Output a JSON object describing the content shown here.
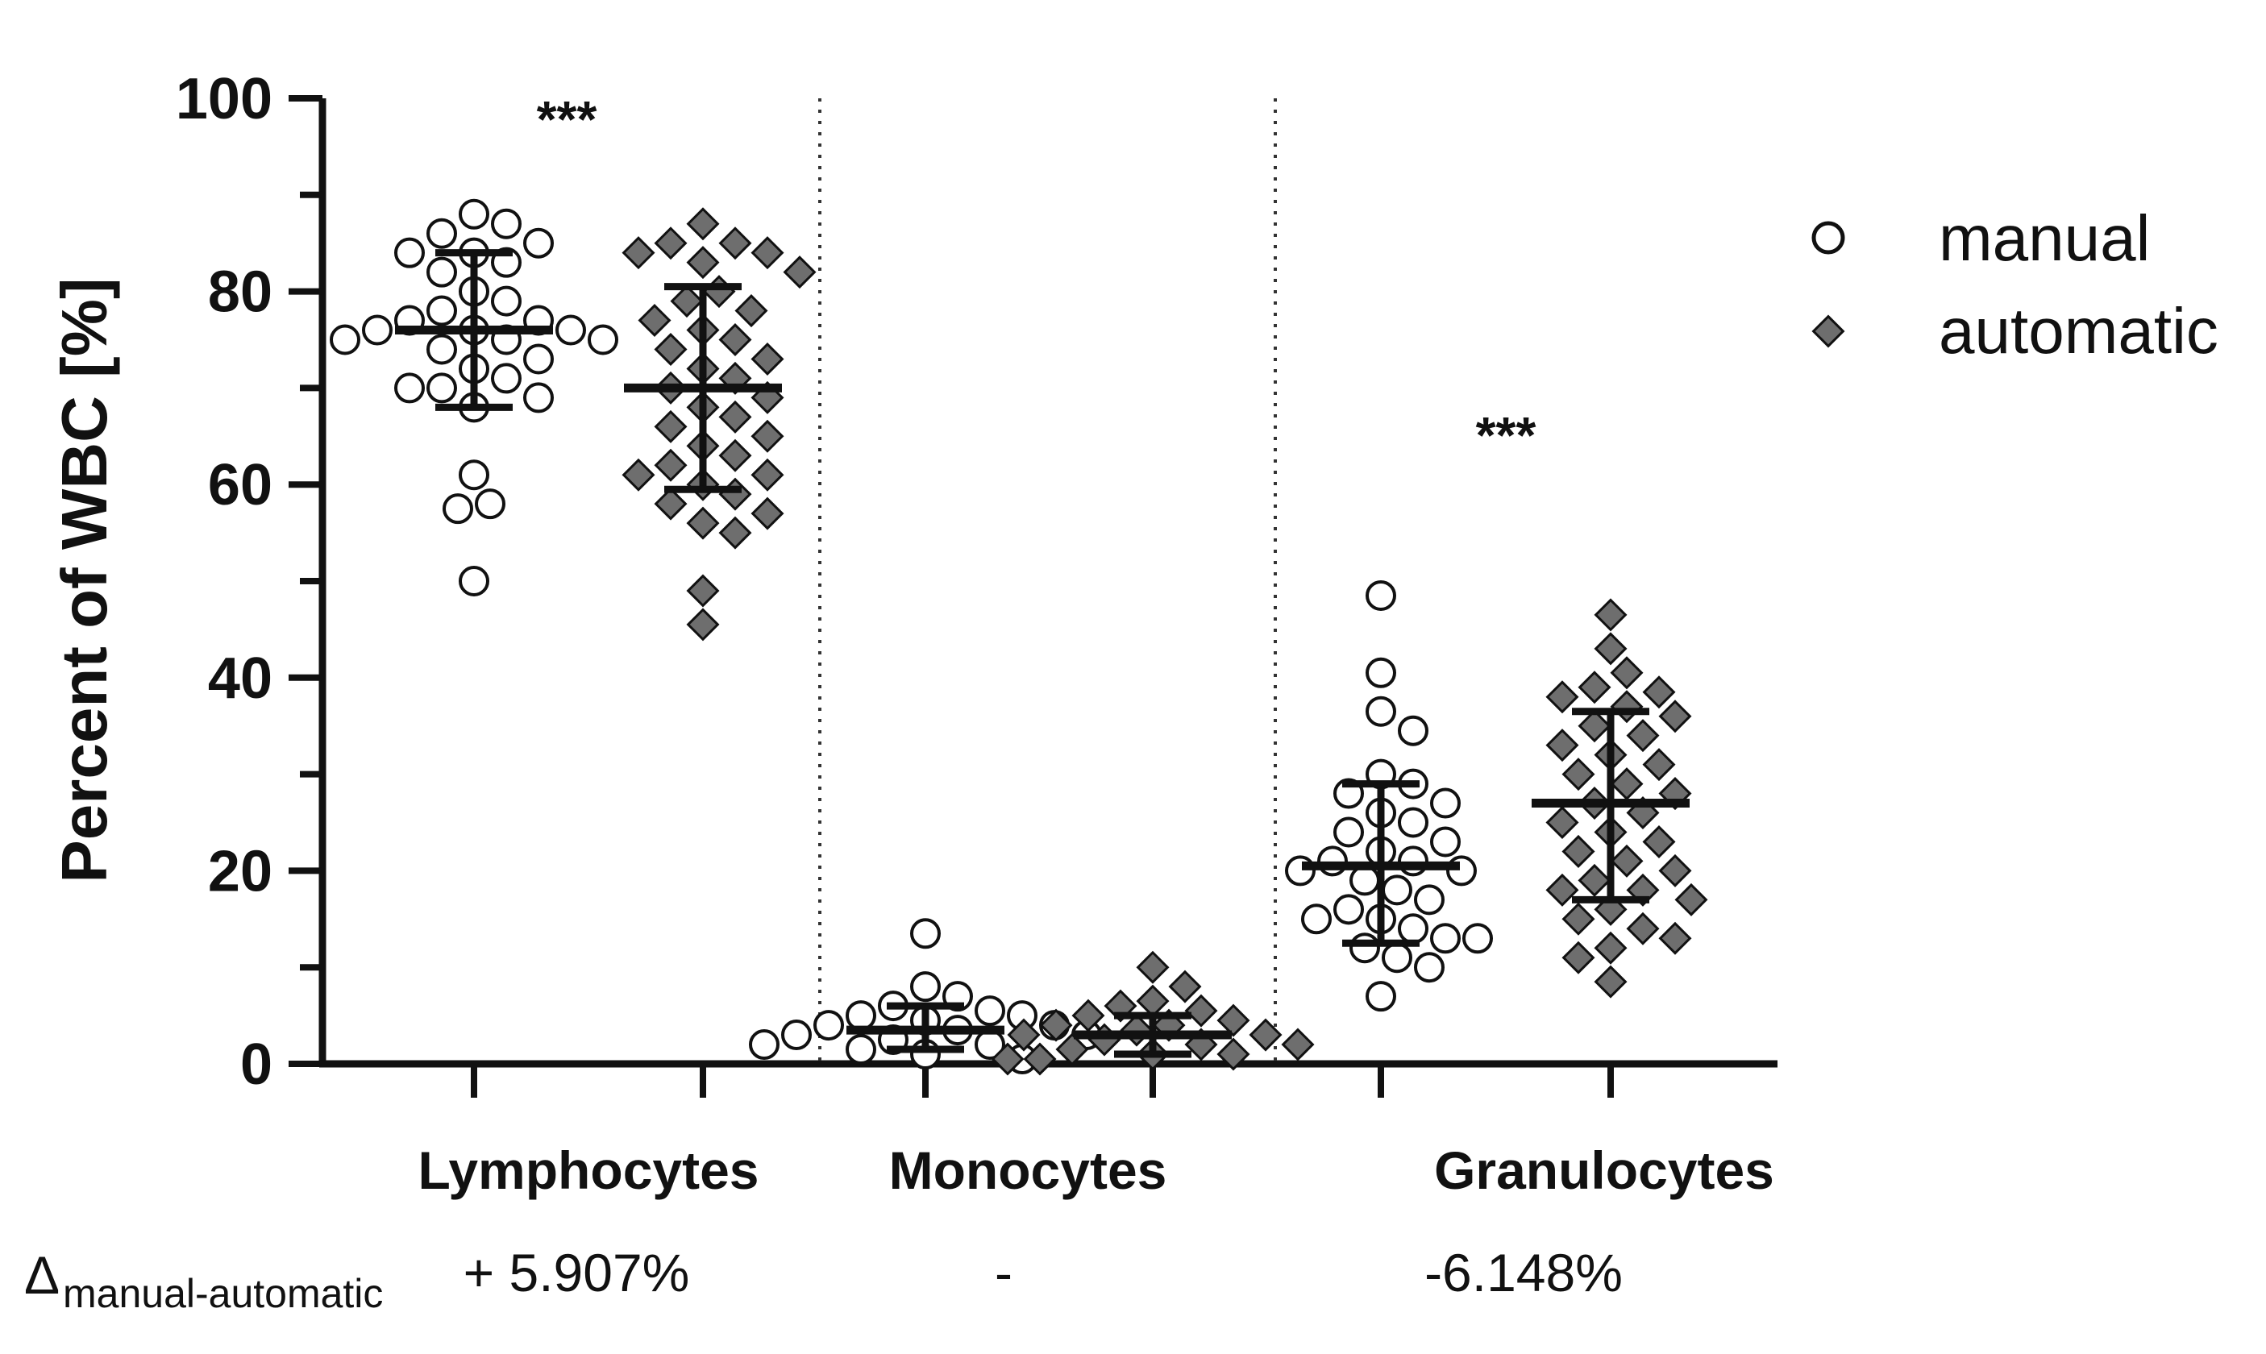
{
  "chart_data": {
    "type": "scatter",
    "ylabel": "Percent of WBC [%]",
    "ylim": [
      0,
      100
    ],
    "yticks": [
      0,
      20,
      40,
      60,
      80,
      100
    ],
    "categories": [
      "Lymphocytes",
      "Monocytes",
      "Granulocytes"
    ],
    "legend": {
      "placement": "top-right",
      "entries": [
        {
          "name": "manual",
          "marker": "circle",
          "fill": "#ffffff"
        },
        {
          "name": "automatic",
          "marker": "diamond",
          "fill": "#6e6e6e"
        }
      ]
    },
    "significance": [
      {
        "category": "Lymphocytes",
        "label": "***"
      },
      {
        "category": "Granulocytes",
        "label": "***"
      }
    ],
    "delta": {
      "symbol": "Δ",
      "subscript": "manual-automatic",
      "values": [
        "+ 5.907%",
        "-",
        "-6.148%"
      ]
    },
    "groups": [
      {
        "category": "Lymphocytes",
        "series": "manual",
        "mean": 76,
        "sd_low": 68,
        "sd_high": 84,
        "values": [
          88,
          87,
          86,
          85,
          84,
          84,
          83,
          82,
          80,
          79,
          78,
          77,
          77,
          76,
          76,
          76,
          75,
          75,
          75,
          74,
          73,
          72,
          71,
          70,
          70,
          69,
          68,
          61,
          58,
          57.5,
          50
        ]
      },
      {
        "category": "Lymphocytes",
        "series": "automatic",
        "mean": 70,
        "sd_low": 59.5,
        "sd_high": 80.5,
        "values": [
          87,
          85,
          85,
          84,
          84,
          83,
          82,
          80,
          79,
          78,
          77,
          76,
          75,
          74,
          73,
          72,
          71,
          70,
          69,
          68,
          67,
          66,
          65,
          64,
          63,
          62,
          61,
          61,
          60,
          59,
          58,
          57,
          56,
          55,
          49,
          45.5
        ]
      },
      {
        "category": "Monocytes",
        "series": "manual",
        "mean": 3.5,
        "sd_low": 1.5,
        "sd_high": 6,
        "values": [
          13.5,
          8,
          7,
          6,
          5.5,
          5,
          5,
          4.5,
          4,
          4,
          3.5,
          3,
          3,
          2.5,
          2,
          2,
          1.5,
          1,
          0.5
        ]
      },
      {
        "category": "Monocytes",
        "series": "automatic",
        "mean": 3,
        "sd_low": 1,
        "sd_high": 5,
        "values": [
          10,
          8,
          6.5,
          6,
          5.5,
          5,
          4.5,
          4,
          4,
          3.5,
          3,
          3,
          2.5,
          2,
          2,
          1.5,
          1,
          1,
          0.5,
          0.5
        ]
      },
      {
        "category": "Granulocytes",
        "series": "manual",
        "mean": 20.5,
        "sd_low": 12.5,
        "sd_high": 29,
        "values": [
          48.5,
          40.5,
          36.5,
          34.5,
          30,
          29,
          28,
          27,
          26,
          25,
          24,
          23,
          22,
          21,
          21,
          20,
          20,
          19,
          18,
          17,
          16,
          15,
          15,
          14,
          13,
          13,
          12,
          11,
          10,
          7
        ]
      },
      {
        "category": "Granulocytes",
        "series": "automatic",
        "mean": 27,
        "sd_low": 17,
        "sd_high": 36.5,
        "values": [
          46.5,
          43,
          40.5,
          39,
          38.5,
          38,
          37,
          36,
          35,
          34,
          33,
          32,
          31,
          30,
          29,
          28,
          27,
          26,
          25,
          24,
          23,
          22,
          21,
          20,
          19,
          18,
          18,
          17,
          16,
          15,
          14,
          13,
          12,
          11,
          8.5
        ]
      }
    ]
  }
}
